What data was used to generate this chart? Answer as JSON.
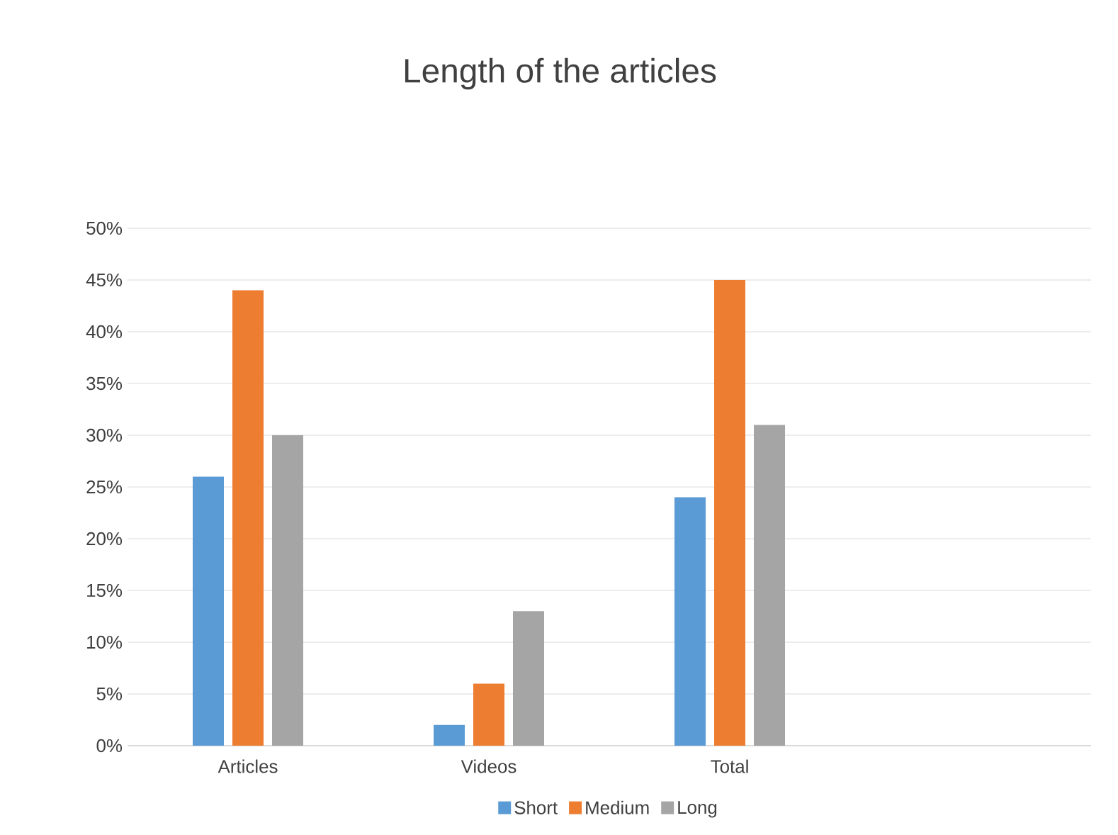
{
  "chart_data": {
    "type": "bar",
    "title": "Length of the articles",
    "categories": [
      "Articles",
      "Videos",
      "Total",
      null
    ],
    "series": [
      {
        "name": "Short",
        "color": "#5b9bd5",
        "values": [
          26,
          2,
          24,
          null
        ]
      },
      {
        "name": "Medium",
        "color": "#ed7d31",
        "values": [
          44,
          6,
          45,
          null
        ]
      },
      {
        "name": "Long",
        "color": "#a5a5a5",
        "values": [
          30,
          13,
          31,
          null
        ]
      }
    ],
    "ylim": [
      0,
      50
    ],
    "yticks": [
      {
        "value": 0,
        "label": "0%"
      },
      {
        "value": 5,
        "label": "5%"
      },
      {
        "value": 10,
        "label": "10%"
      },
      {
        "value": 15,
        "label": "15%"
      },
      {
        "value": 20,
        "label": "20%"
      },
      {
        "value": 25,
        "label": "25%"
      },
      {
        "value": 30,
        "label": "30%"
      },
      {
        "value": 35,
        "label": "35%"
      },
      {
        "value": 40,
        "label": "40%"
      },
      {
        "value": 45,
        "label": "45%"
      },
      {
        "value": 50,
        "label": "50%"
      }
    ],
    "grid": "y",
    "legend": "bottom"
  }
}
